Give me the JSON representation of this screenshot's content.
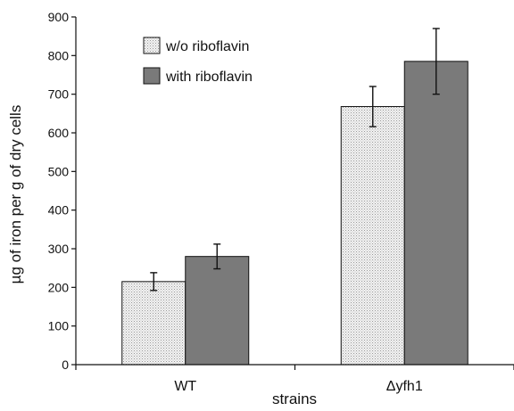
{
  "chart_data": {
    "type": "bar",
    "categories": [
      "WT",
      "Δyfh1"
    ],
    "series": [
      {
        "name": "w/o riboflavin",
        "values": [
          215,
          668
        ],
        "error": [
          23,
          52
        ],
        "color": "#e4e4e4",
        "pattern": "stipple"
      },
      {
        "name": "with riboflavin",
        "values": [
          280,
          785
        ],
        "error": [
          32,
          85
        ],
        "color": "#7a7a7a",
        "pattern": "solid"
      }
    ],
    "title": "",
    "xlabel": "strains",
    "ylabel": "µg of iron per g of dry cells",
    "ylim": [
      0,
      900
    ],
    "yticks": [
      0,
      100,
      200,
      300,
      400,
      500,
      600,
      700,
      800,
      900
    ],
    "grid": false,
    "legend_position": "top-left"
  }
}
